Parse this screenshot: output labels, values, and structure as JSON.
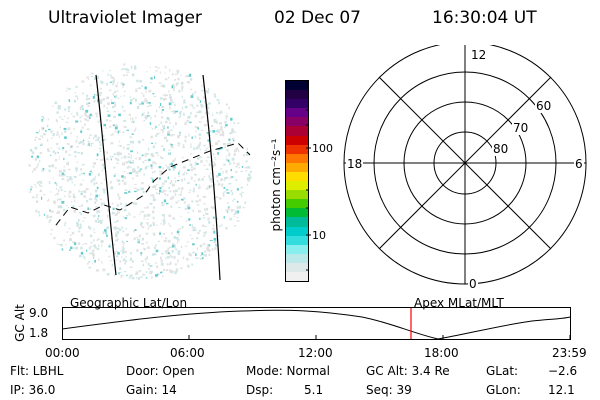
{
  "header": {
    "title": "Ultraviolet Imager",
    "date": "02 Dec 07",
    "time": "16:30:04 UT"
  },
  "colorbar": {
    "label": "photon cm⁻²s⁻¹",
    "ticks": [
      "100",
      "10"
    ],
    "colors": [
      "#000033",
      "#220044",
      "#330066",
      "#660088",
      "#880066",
      "#aa0033",
      "#cc0000",
      "#ee3300",
      "#ff7700",
      "#ffaa00",
      "#ffdd00",
      "#ddee00",
      "#99dd00",
      "#44cc00",
      "#00bb33",
      "#00bb99",
      "#00cccc",
      "#33dddd",
      "#88eeee",
      "#bbe8e8",
      "#dde8e8",
      "#f0f0f0"
    ]
  },
  "polar": {
    "mlt_labels": {
      "top": "12",
      "left": "18",
      "right": "6",
      "bottom": "0"
    },
    "lat_labels": [
      "60",
      "70",
      "80"
    ]
  },
  "timeline": {
    "left_label": "Geographic Lat/Lon",
    "right_label": "Apex  MLat/MLT",
    "axis_label": "GC Alt",
    "y_ticks": [
      "9.0",
      "1.8"
    ],
    "x_ticks": [
      "00:00",
      "06:00",
      "12:00",
      "18:00",
      "23:59"
    ],
    "marker_time": "16:30"
  },
  "info": {
    "flt": "Flt: LBHL",
    "ip": "IP: 36.0",
    "door": "Door: Open",
    "gain": "Gain: 14",
    "mode": "Mode: Normal",
    "dsp_label": "Dsp:",
    "dsp_value": "5.1",
    "gcalt": "GC Alt: 3.4 Re",
    "seq": "Seq: 39",
    "glat_label": "GLat:",
    "glat_value": "−2.6",
    "glon_label": "GLon:",
    "glon_value": "12.1"
  },
  "colors": {
    "marker": "#ff0000",
    "speckle": "#66cccc"
  }
}
